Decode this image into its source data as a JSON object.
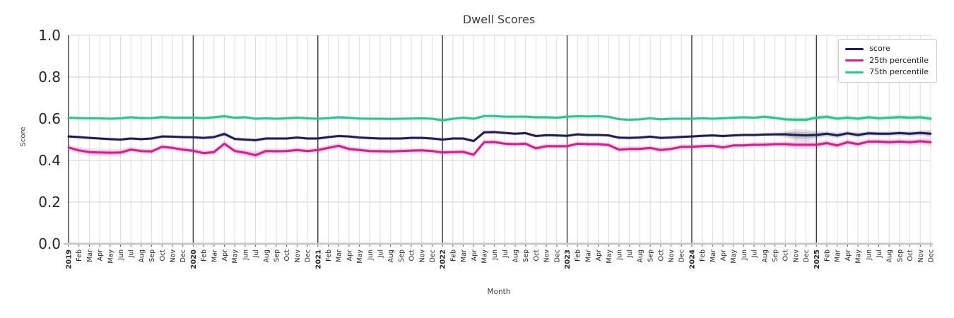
{
  "figure": {
    "title": "Dwell Scores",
    "xlabel": "Month",
    "ylabel": "Score"
  },
  "chart_data": {
    "type": "line",
    "title": "Dwell Scores",
    "xlabel": "Month",
    "ylabel": "Score",
    "ylim": [
      0.0,
      1.0
    ],
    "ytick_labels": [
      "0.0",
      "0.2",
      "0.4",
      "0.6",
      "0.8",
      "1.0"
    ],
    "grid": true,
    "legend_position": "upper-right",
    "years": [
      "2019",
      "2020",
      "2021",
      "2022",
      "2023",
      "2024",
      "2025"
    ],
    "month_labels": [
      "Feb",
      "Mar",
      "Apr",
      "May",
      "Jun",
      "Jul",
      "Aug",
      "Sep",
      "Oct",
      "Nov",
      "Dec"
    ],
    "colors": {
      "grid": "#dcdcdc",
      "year_line": "#3a3a3a",
      "axis_line": "#c9c9c9",
      "tick_text": "#262626",
      "title_text": "#3d3d3d"
    },
    "series": [
      {
        "name": "score",
        "color": "#211c54",
        "values": [
          0.515,
          0.512,
          0.508,
          0.505,
          0.502,
          0.5,
          0.505,
          0.502,
          0.505,
          0.515,
          0.514,
          0.512,
          0.511,
          0.508,
          0.512,
          0.527,
          0.503,
          0.5,
          0.497,
          0.505,
          0.505,
          0.505,
          0.51,
          0.505,
          0.505,
          0.512,
          0.517,
          0.515,
          0.51,
          0.507,
          0.505,
          0.505,
          0.505,
          0.508,
          0.508,
          0.505,
          0.5,
          0.505,
          0.505,
          0.493,
          0.535,
          0.536,
          0.532,
          0.528,
          0.531,
          0.517,
          0.521,
          0.52,
          0.518,
          0.525,
          0.522,
          0.522,
          0.52,
          0.509,
          0.508,
          0.51,
          0.514,
          0.508,
          0.51,
          0.513,
          0.515,
          0.518,
          0.52,
          0.517,
          0.52,
          0.522,
          0.522,
          0.524,
          0.525,
          0.525,
          0.522,
          0.52,
          0.522,
          0.528,
          0.52,
          0.53,
          0.522,
          0.53,
          0.528,
          0.528,
          0.531,
          0.528,
          0.532,
          0.528
        ],
        "band_halfwidth": [
          0.008,
          0.008,
          0.008,
          0.008,
          0.008,
          0.008,
          0.008,
          0.008,
          0.008,
          0.008,
          0.008,
          0.008,
          0.008,
          0.008,
          0.009,
          0.013,
          0.009,
          0.008,
          0.009,
          0.008,
          0.008,
          0.008,
          0.008,
          0.008,
          0.008,
          0.008,
          0.008,
          0.008,
          0.008,
          0.008,
          0.008,
          0.008,
          0.008,
          0.008,
          0.008,
          0.008,
          0.008,
          0.008,
          0.008,
          0.01,
          0.01,
          0.008,
          0.008,
          0.008,
          0.008,
          0.008,
          0.008,
          0.008,
          0.008,
          0.008,
          0.008,
          0.008,
          0.008,
          0.008,
          0.008,
          0.008,
          0.008,
          0.008,
          0.008,
          0.008,
          0.008,
          0.008,
          0.008,
          0.008,
          0.008,
          0.008,
          0.008,
          0.008,
          0.009,
          0.015,
          0.028,
          0.028,
          0.02,
          0.014,
          0.014,
          0.013,
          0.013,
          0.013,
          0.012,
          0.012,
          0.012,
          0.013,
          0.013,
          0.018
        ]
      },
      {
        "name": "25th percentile",
        "color": "#d2208d",
        "values": [
          0.462,
          0.448,
          0.44,
          0.438,
          0.437,
          0.438,
          0.452,
          0.445,
          0.443,
          0.465,
          0.46,
          0.452,
          0.446,
          0.435,
          0.44,
          0.48,
          0.445,
          0.437,
          0.425,
          0.445,
          0.444,
          0.445,
          0.45,
          0.445,
          0.45,
          0.46,
          0.47,
          0.455,
          0.45,
          0.445,
          0.444,
          0.443,
          0.445,
          0.447,
          0.448,
          0.445,
          0.438,
          0.44,
          0.441,
          0.427,
          0.487,
          0.488,
          0.48,
          0.478,
          0.48,
          0.458,
          0.468,
          0.468,
          0.468,
          0.48,
          0.478,
          0.478,
          0.474,
          0.452,
          0.455,
          0.455,
          0.46,
          0.45,
          0.455,
          0.465,
          0.465,
          0.468,
          0.47,
          0.462,
          0.472,
          0.472,
          0.475,
          0.475,
          0.478,
          0.478,
          0.475,
          0.475,
          0.475,
          0.483,
          0.472,
          0.487,
          0.478,
          0.49,
          0.49,
          0.487,
          0.49,
          0.487,
          0.492,
          0.487
        ],
        "band_halfwidth": [
          0.014,
          0.017,
          0.018,
          0.018,
          0.018,
          0.017,
          0.015,
          0.014,
          0.014,
          0.013,
          0.013,
          0.014,
          0.014,
          0.014,
          0.014,
          0.016,
          0.015,
          0.016,
          0.02,
          0.014,
          0.013,
          0.013,
          0.013,
          0.014,
          0.015,
          0.014,
          0.014,
          0.015,
          0.014,
          0.013,
          0.013,
          0.013,
          0.013,
          0.013,
          0.013,
          0.013,
          0.014,
          0.013,
          0.013,
          0.016,
          0.013,
          0.013,
          0.013,
          0.013,
          0.013,
          0.015,
          0.013,
          0.013,
          0.013,
          0.013,
          0.013,
          0.013,
          0.013,
          0.015,
          0.014,
          0.013,
          0.013,
          0.014,
          0.013,
          0.013,
          0.013,
          0.013,
          0.013,
          0.014,
          0.013,
          0.013,
          0.013,
          0.013,
          0.013,
          0.015,
          0.02,
          0.02,
          0.018,
          0.016,
          0.017,
          0.016,
          0.016,
          0.016,
          0.015,
          0.015,
          0.015,
          0.016,
          0.016,
          0.022
        ]
      },
      {
        "name": "75th percentile",
        "color": "#2bc492",
        "values": [
          0.605,
          0.603,
          0.602,
          0.602,
          0.6,
          0.602,
          0.607,
          0.603,
          0.603,
          0.608,
          0.605,
          0.605,
          0.605,
          0.603,
          0.607,
          0.612,
          0.605,
          0.607,
          0.6,
          0.602,
          0.6,
          0.602,
          0.605,
          0.602,
          0.6,
          0.603,
          0.607,
          0.604,
          0.601,
          0.6,
          0.6,
          0.599,
          0.6,
          0.601,
          0.602,
          0.6,
          0.592,
          0.6,
          0.605,
          0.6,
          0.613,
          0.613,
          0.61,
          0.61,
          0.61,
          0.607,
          0.607,
          0.605,
          0.61,
          0.612,
          0.611,
          0.612,
          0.609,
          0.598,
          0.595,
          0.597,
          0.602,
          0.597,
          0.6,
          0.6,
          0.6,
          0.602,
          0.6,
          0.602,
          0.605,
          0.607,
          0.605,
          0.61,
          0.604,
          0.597,
          0.595,
          0.595,
          0.605,
          0.61,
          0.6,
          0.605,
          0.6,
          0.607,
          0.602,
          0.605,
          0.608,
          0.605,
          0.607,
          0.6
        ],
        "band_halfwidth": [
          0.008,
          0.008,
          0.008,
          0.008,
          0.008,
          0.008,
          0.008,
          0.008,
          0.008,
          0.008,
          0.008,
          0.008,
          0.008,
          0.008,
          0.008,
          0.01,
          0.008,
          0.008,
          0.008,
          0.008,
          0.008,
          0.008,
          0.008,
          0.008,
          0.008,
          0.008,
          0.008,
          0.008,
          0.008,
          0.008,
          0.008,
          0.008,
          0.008,
          0.008,
          0.008,
          0.008,
          0.01,
          0.008,
          0.008,
          0.008,
          0.008,
          0.008,
          0.008,
          0.008,
          0.008,
          0.008,
          0.008,
          0.008,
          0.008,
          0.008,
          0.008,
          0.008,
          0.008,
          0.008,
          0.008,
          0.008,
          0.008,
          0.008,
          0.008,
          0.008,
          0.008,
          0.008,
          0.008,
          0.008,
          0.008,
          0.008,
          0.008,
          0.008,
          0.01,
          0.014,
          0.015,
          0.015,
          0.013,
          0.012,
          0.013,
          0.012,
          0.012,
          0.012,
          0.012,
          0.012,
          0.012,
          0.013,
          0.013,
          0.018
        ]
      }
    ]
  }
}
